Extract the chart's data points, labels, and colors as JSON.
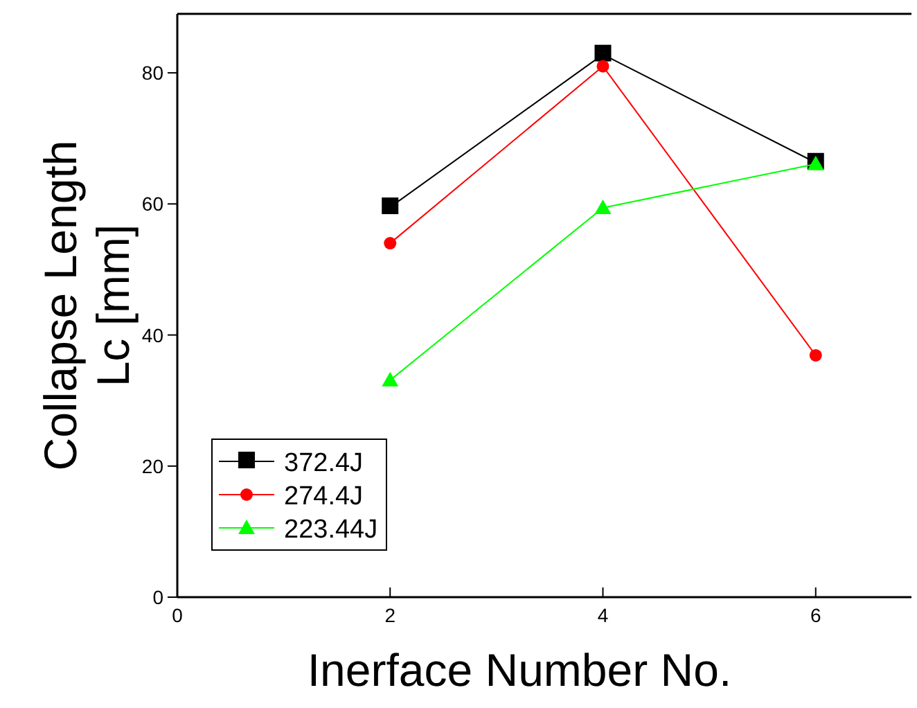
{
  "chart_data": {
    "type": "line",
    "xlabel": "Inerface Number No.",
    "ylabel": "Collapse Length\nLc [mm]",
    "x": [
      2,
      4,
      6
    ],
    "series": [
      {
        "name": "372.4J",
        "color": "#000000",
        "marker": "square",
        "values": [
          59.5,
          82.8,
          66.3
        ]
      },
      {
        "name": "274.4J",
        "color": "#ff0000",
        "marker": "circle",
        "values": [
          54.0,
          81.0,
          36.9
        ]
      },
      {
        "name": "223.44J",
        "color": "#00ff00",
        "marker": "triangle",
        "values": [
          33.1,
          59.4,
          66.1
        ]
      }
    ],
    "xlim": [
      0,
      6.9
    ],
    "ylim": [
      0,
      89
    ],
    "xticks": [
      0,
      2,
      4,
      6
    ],
    "yticks": [
      0,
      20,
      40,
      60,
      80
    ],
    "grid": false,
    "legend": "bottom left",
    "line_style": "solid"
  }
}
